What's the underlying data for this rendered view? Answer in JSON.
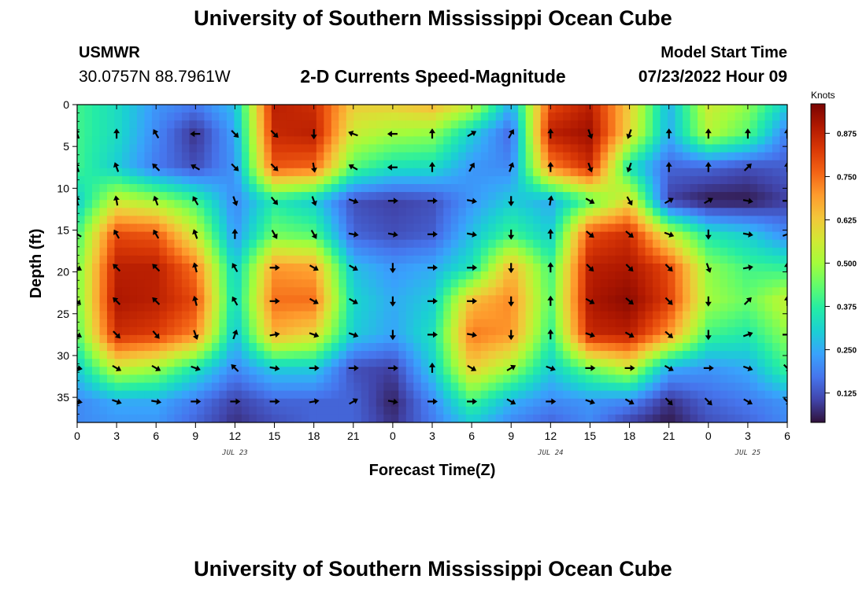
{
  "header": {
    "title": "University of Southern Mississippi Ocean Cube",
    "station": "USMWR",
    "coords": "30.0757N  88.7961W",
    "subtitle": "2-D Currents Speed-Magnitude",
    "model_label": "Model Start Time",
    "model_time": "07/23/2022 Hour 09"
  },
  "footer": {
    "title": "University of Southern Mississippi Ocean Cube"
  },
  "chart_data": {
    "type": "heatmap",
    "xlabel": "Forecast Time(Z)",
    "ylabel": "Depth (ft)",
    "x_tick_labels": [
      "0",
      "3",
      "6",
      "9",
      "12",
      "15",
      "18",
      "21",
      "0",
      "3",
      "6",
      "9",
      "12",
      "15",
      "18",
      "21",
      "0",
      "3",
      "6"
    ],
    "x_range_hours": [
      0,
      54
    ],
    "date_labels": [
      {
        "label": "JUL 23",
        "at_hour": 12
      },
      {
        "label": "JUL 24",
        "at_hour": 36
      },
      {
        "label": "JUL 25",
        "at_hour": 51
      }
    ],
    "y_ticks": [
      0,
      5,
      10,
      15,
      20,
      25,
      30,
      35
    ],
    "y_range": [
      0,
      38
    ],
    "colorbar": {
      "units": "Knots",
      "ticks": [
        0.125,
        0.25,
        0.375,
        0.5,
        0.625,
        0.75,
        0.875
      ],
      "tick_labels": [
        "0.125",
        "0.250",
        "0.375",
        "0.500",
        "0.625",
        "0.750",
        "0.875"
      ],
      "range": [
        0.04,
        0.96
      ],
      "colors": [
        "#30123b",
        "#4145ab",
        "#4675ed",
        "#39a2fc",
        "#1bcfd4",
        "#24eca6",
        "#61fc6c",
        "#a4fc3b",
        "#d1e834",
        "#f3c63a",
        "#fe9b2d",
        "#f36315",
        "#d93806",
        "#b11901",
        "#7a0402"
      ]
    },
    "speed_grid": {
      "times_h": [
        0,
        3,
        6,
        9,
        12,
        15,
        18,
        21,
        24,
        27,
        30,
        33,
        36,
        39,
        42,
        45,
        48,
        51,
        54
      ],
      "depths_ft": [
        0,
        3.5,
        7.5,
        11.5,
        15.5,
        19.5,
        23.5,
        27.5,
        31.5,
        35.5,
        38
      ],
      "values": [
        [
          0.4,
          0.33,
          0.22,
          0.18,
          0.28,
          0.88,
          0.85,
          0.62,
          0.62,
          0.66,
          0.55,
          0.25,
          0.8,
          0.88,
          0.62,
          0.26,
          0.56,
          0.48,
          0.3
        ],
        [
          0.4,
          0.33,
          0.2,
          0.08,
          0.24,
          0.86,
          0.88,
          0.55,
          0.5,
          0.48,
          0.3,
          0.15,
          0.88,
          0.92,
          0.6,
          0.25,
          0.52,
          0.42,
          0.18
        ],
        [
          0.4,
          0.3,
          0.18,
          0.12,
          0.22,
          0.78,
          0.76,
          0.42,
          0.34,
          0.33,
          0.22,
          0.2,
          0.72,
          0.85,
          0.34,
          0.15,
          0.15,
          0.12,
          0.14
        ],
        [
          0.3,
          0.55,
          0.5,
          0.4,
          0.2,
          0.36,
          0.3,
          0.12,
          0.1,
          0.12,
          0.22,
          0.3,
          0.25,
          0.42,
          0.6,
          0.1,
          0.05,
          0.05,
          0.1
        ],
        [
          0.4,
          0.8,
          0.78,
          0.55,
          0.22,
          0.45,
          0.42,
          0.15,
          0.12,
          0.14,
          0.28,
          0.4,
          0.3,
          0.8,
          0.85,
          0.55,
          0.35,
          0.3,
          0.2
        ],
        [
          0.45,
          0.88,
          0.88,
          0.74,
          0.3,
          0.7,
          0.68,
          0.28,
          0.22,
          0.25,
          0.35,
          0.66,
          0.4,
          0.88,
          0.9,
          0.8,
          0.48,
          0.4,
          0.38
        ],
        [
          0.45,
          0.9,
          0.88,
          0.8,
          0.32,
          0.75,
          0.75,
          0.32,
          0.25,
          0.3,
          0.65,
          0.72,
          0.42,
          0.9,
          0.94,
          0.82,
          0.5,
          0.44,
          0.55
        ],
        [
          0.42,
          0.85,
          0.82,
          0.72,
          0.28,
          0.66,
          0.6,
          0.3,
          0.24,
          0.34,
          0.74,
          0.7,
          0.38,
          0.86,
          0.88,
          0.7,
          0.4,
          0.36,
          0.48
        ],
        [
          0.3,
          0.55,
          0.5,
          0.35,
          0.2,
          0.3,
          0.3,
          0.12,
          0.1,
          0.3,
          0.62,
          0.5,
          0.3,
          0.45,
          0.55,
          0.25,
          0.22,
          0.25,
          0.4
        ],
        [
          0.2,
          0.25,
          0.25,
          0.18,
          0.1,
          0.15,
          0.15,
          0.15,
          0.06,
          0.2,
          0.4,
          0.26,
          0.2,
          0.22,
          0.2,
          0.08,
          0.15,
          0.18,
          0.22
        ],
        [
          0.2,
          0.22,
          0.22,
          0.15,
          0.08,
          0.12,
          0.15,
          0.15,
          0.08,
          0.18,
          0.3,
          0.2,
          0.15,
          0.2,
          0.1,
          0.05,
          0.12,
          0.15,
          0.2
        ]
      ]
    },
    "vector_directions_deg": {
      "note": "arrow bearing in degrees, 0 = up, clockwise; rows at depths 3.5,7.5,11.5,15.5,19.5,23.5,27.5,31.5,35.5 ft",
      "rows": [
        [
          340,
          0,
          330,
          270,
          135,
          135,
          180,
          290,
          270,
          0,
          60,
          30,
          0,
          160,
          200,
          0,
          0,
          0,
          0
        ],
        [
          340,
          340,
          315,
          300,
          135,
          135,
          170,
          300,
          270,
          0,
          30,
          20,
          0,
          160,
          200,
          0,
          0,
          45,
          0
        ],
        [
          350,
          350,
          340,
          330,
          160,
          140,
          160,
          110,
          90,
          90,
          100,
          180,
          10,
          120,
          150,
          60,
          60,
          100,
          90
        ],
        [
          300,
          330,
          330,
          340,
          0,
          150,
          150,
          100,
          100,
          90,
          100,
          180,
          0,
          130,
          130,
          110,
          180,
          100,
          70
        ],
        [
          120,
          315,
          315,
          345,
          330,
          90,
          120,
          120,
          180,
          90,
          90,
          180,
          0,
          135,
          135,
          135,
          160,
          80,
          0
        ],
        [
          135,
          315,
          315,
          345,
          330,
          90,
          120,
          120,
          180,
          90,
          90,
          180,
          0,
          120,
          130,
          135,
          180,
          45,
          0
        ],
        [
          120,
          135,
          140,
          160,
          20,
          80,
          110,
          110,
          180,
          90,
          100,
          180,
          0,
          110,
          120,
          130,
          180,
          70,
          90
        ],
        [
          100,
          120,
          120,
          110,
          315,
          100,
          90,
          90,
          90,
          0,
          120,
          60,
          110,
          90,
          90,
          120,
          90,
          110,
          135
        ],
        [
          100,
          110,
          100,
          90,
          90,
          90,
          80,
          60,
          100,
          90,
          90,
          120,
          90,
          110,
          120,
          135,
          135,
          120,
          135
        ]
      ]
    }
  }
}
